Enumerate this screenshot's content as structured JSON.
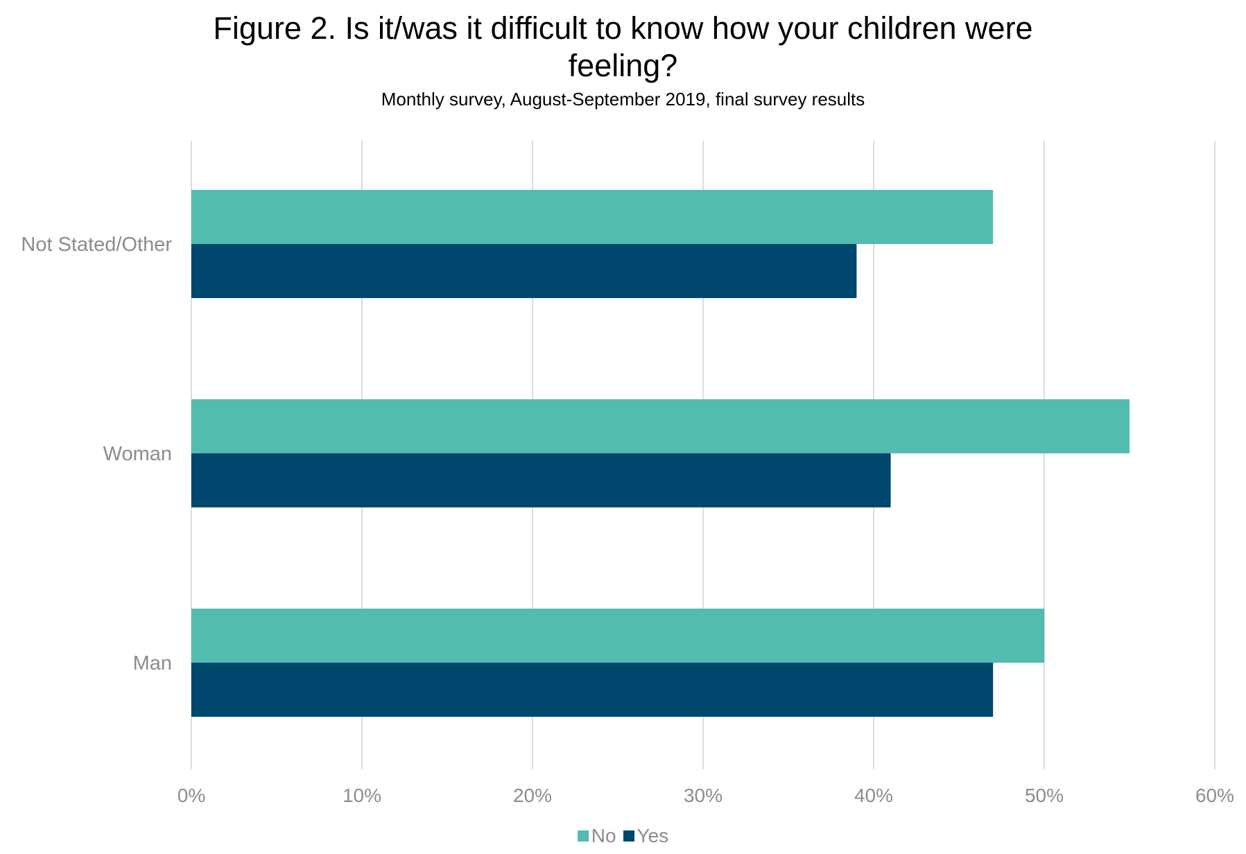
{
  "header": {
    "title_line1": "Figure 2. Is it/was it difficult to know how your children were",
    "title_line2": "feeling?",
    "subtitle": "Monthly survey, August-September 2019, final survey results"
  },
  "colors": {
    "No": "#53bbb0",
    "Yes": "#00476e",
    "grid": "#dcdcdc",
    "tick_text": "#8c8c8c"
  },
  "chart_data": {
    "type": "bar",
    "orientation": "horizontal",
    "title": "Figure 2. Is it/was it difficult to know how your children were feeling?",
    "subtitle": "Monthly survey, August-September 2019, final survey results",
    "categories": [
      "Not Stated/Other",
      "Woman",
      "Man"
    ],
    "series": [
      {
        "name": "No",
        "values": [
          47,
          55,
          50
        ]
      },
      {
        "name": "Yes",
        "values": [
          39,
          41,
          47
        ]
      }
    ],
    "xlim": [
      0,
      60
    ],
    "x_ticks": [
      0,
      10,
      20,
      30,
      40,
      50,
      60
    ],
    "x_tick_labels": [
      "0%",
      "10%",
      "20%",
      "30%",
      "40%",
      "50%",
      "60%"
    ],
    "grid": true,
    "legend_position": "bottom"
  }
}
